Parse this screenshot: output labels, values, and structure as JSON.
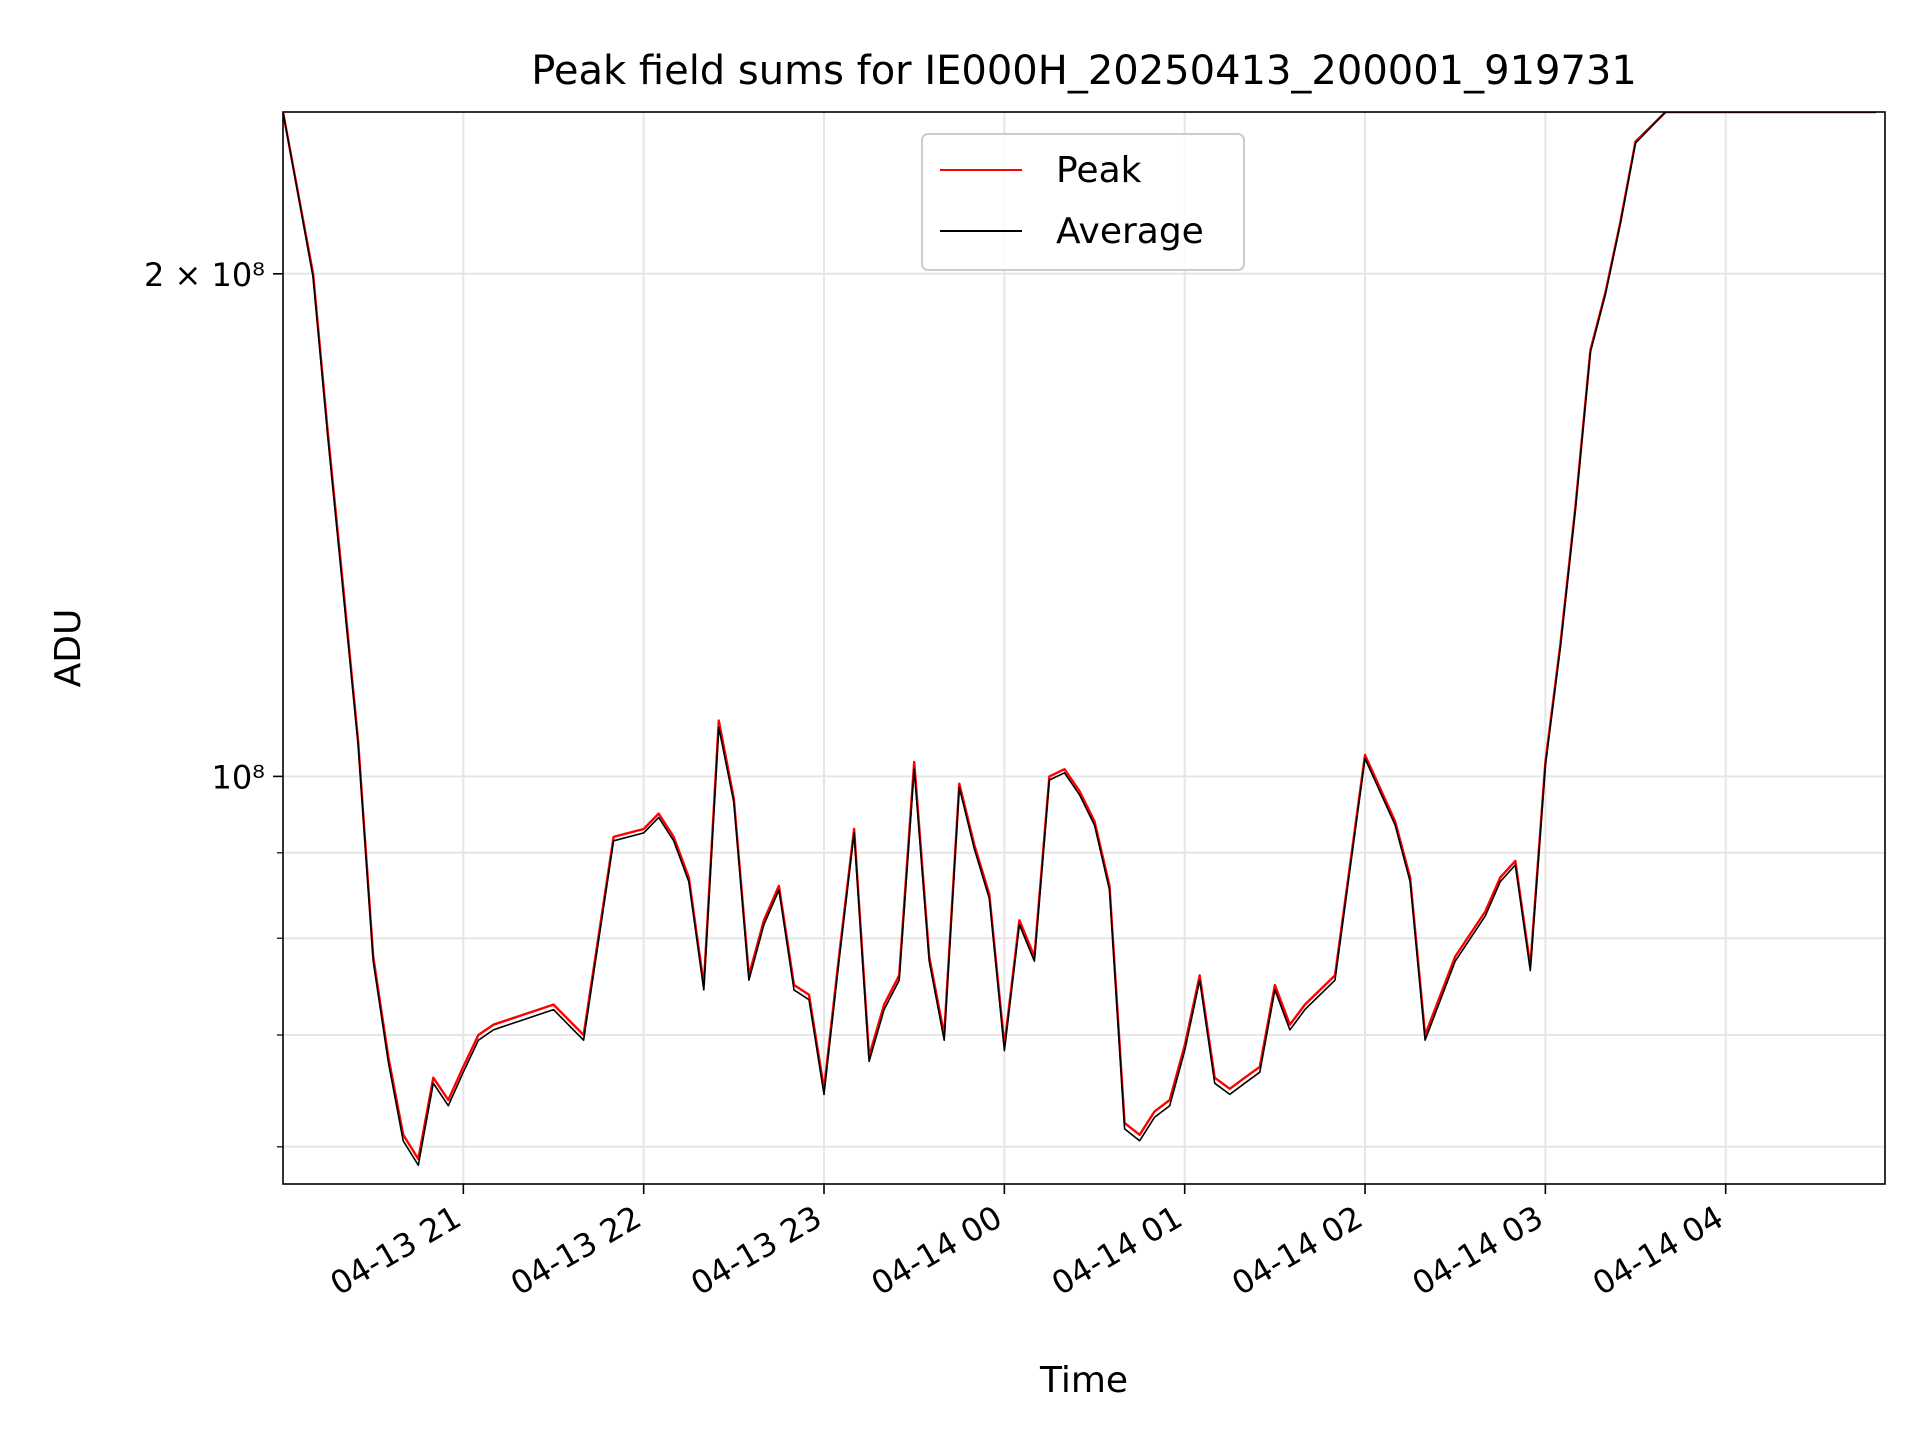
{
  "chart_data": {
    "type": "line",
    "title": "Peak field sums for IE000H_20250413_200001_919731",
    "xlabel": "Time",
    "ylabel": "ADU",
    "y_scale": "log",
    "grid": true,
    "legend_position": "top-center",
    "xlim": [
      "2025-04-13 20:00",
      "2025-04-14 04:53"
    ],
    "ylim": [
      57000000,
      250000000
    ],
    "x_ticks": [
      {
        "label": "04-13 21",
        "value": "2025-04-13 21:00"
      },
      {
        "label": "04-13 22",
        "value": "2025-04-13 22:00"
      },
      {
        "label": "04-13 23",
        "value": "2025-04-13 23:00"
      },
      {
        "label": "04-14 00",
        "value": "2025-04-14 00:00"
      },
      {
        "label": "04-14 01",
        "value": "2025-04-14 01:00"
      },
      {
        "label": "04-14 02",
        "value": "2025-04-14 02:00"
      },
      {
        "label": "04-14 03",
        "value": "2025-04-14 03:00"
      },
      {
        "label": "04-14 04",
        "value": "2025-04-14 04:00"
      }
    ],
    "y_ticks": [
      {
        "value": 200000000,
        "label": "2 × 10⁸"
      },
      {
        "value": 100000000,
        "label": "10⁸"
      }
    ],
    "y_minor_ticks": [
      60000000,
      70000000,
      80000000,
      90000000
    ],
    "x": [
      "2025-04-13 20:00",
      "2025-04-13 20:10",
      "2025-04-13 20:15",
      "2025-04-13 20:20",
      "2025-04-13 20:25",
      "2025-04-13 20:30",
      "2025-04-13 20:35",
      "2025-04-13 20:40",
      "2025-04-13 20:45",
      "2025-04-13 20:50",
      "2025-04-13 20:55",
      "2025-04-13 21:00",
      "2025-04-13 21:05",
      "2025-04-13 21:10",
      "2025-04-13 21:15",
      "2025-04-13 21:20",
      "2025-04-13 21:30",
      "2025-04-13 21:40",
      "2025-04-13 21:50",
      "2025-04-13 22:00",
      "2025-04-13 22:05",
      "2025-04-13 22:10",
      "2025-04-13 22:15",
      "2025-04-13 22:20",
      "2025-04-13 22:25",
      "2025-04-13 22:30",
      "2025-04-13 22:35",
      "2025-04-13 22:40",
      "2025-04-13 22:45",
      "2025-04-13 22:50",
      "2025-04-13 22:55",
      "2025-04-13 23:00",
      "2025-04-13 23:05",
      "2025-04-13 23:10",
      "2025-04-13 23:15",
      "2025-04-13 23:20",
      "2025-04-13 23:25",
      "2025-04-13 23:30",
      "2025-04-13 23:35",
      "2025-04-13 23:40",
      "2025-04-13 23:45",
      "2025-04-13 23:50",
      "2025-04-13 23:55",
      "2025-04-14 00:00",
      "2025-04-14 00:05",
      "2025-04-14 00:10",
      "2025-04-14 00:15",
      "2025-04-14 00:20",
      "2025-04-14 00:25",
      "2025-04-14 00:30",
      "2025-04-14 00:35",
      "2025-04-14 00:40",
      "2025-04-14 00:45",
      "2025-04-14 00:50",
      "2025-04-14 00:55",
      "2025-04-14 01:00",
      "2025-04-14 01:05",
      "2025-04-14 01:10",
      "2025-04-14 01:15",
      "2025-04-14 01:20",
      "2025-04-14 01:25",
      "2025-04-14 01:30",
      "2025-04-14 01:35",
      "2025-04-14 01:40",
      "2025-04-14 01:50",
      "2025-04-14 02:00",
      "2025-04-14 02:10",
      "2025-04-14 02:15",
      "2025-04-14 02:20",
      "2025-04-14 02:30",
      "2025-04-14 02:40",
      "2025-04-14 02:45",
      "2025-04-14 02:50",
      "2025-04-14 02:55",
      "2025-04-14 03:00",
      "2025-04-14 03:05",
      "2025-04-14 03:10",
      "2025-04-14 03:15",
      "2025-04-14 03:20",
      "2025-04-14 03:25",
      "2025-04-14 03:30",
      "2025-04-14 03:40",
      "2025-04-14 03:50",
      "2025-04-14 03:55",
      "2025-04-14 04:00",
      "2025-04-14 04:05",
      "2025-04-14 04:10",
      "2025-04-14 04:15",
      "2025-04-14 04:20",
      "2025-04-14 04:25",
      "2025-04-14 04:30",
      "2025-04-14 04:35",
      "2025-04-14 04:40",
      "2025-04-14 04:45",
      "2025-04-14 04:50"
    ],
    "series": [
      {
        "name": "Peak",
        "color": "#ff0000",
        "values": [
          250000000,
          200000000,
          160000000,
          130000000,
          105000000,
          78000000,
          68000000,
          61000000,
          59000000,
          66000000,
          64000000,
          67000000,
          70000000,
          71000000,
          71500000,
          72000000,
          73000000,
          70000000,
          92000000,
          93000000,
          95000000,
          92000000,
          87000000,
          75000000,
          108000000,
          97000000,
          76000000,
          82000000,
          86000000,
          75000000,
          74000000,
          65000000,
          78000000,
          93000000,
          68000000,
          73000000,
          76000000,
          102000000,
          78000000,
          70000000,
          99000000,
          91000000,
          85000000,
          69000000,
          82000000,
          78000000,
          100000000,
          101000000,
          98000000,
          94000000,
          86000000,
          62000000,
          61000000,
          63000000,
          64000000,
          69000000,
          76000000,
          66000000,
          65000000,
          66000000,
          67000000,
          75000000,
          71000000,
          73000000,
          76000000,
          103000000,
          94000000,
          87000000,
          70000000,
          78000000,
          83000000,
          87000000,
          89000000,
          77000000,
          102000000,
          120000000,
          145000000,
          180000000,
          195000000,
          215000000,
          240000000,
          250000000,
          250000000,
          250000000,
          250000000,
          250000000,
          250000000,
          250000000,
          250000000,
          250000000,
          250000000,
          250000000,
          250000000,
          250000000,
          250000000
        ]
      },
      {
        "name": "Average",
        "color": "#000000",
        "values": [
          250000000,
          199000000,
          159000000,
          129000000,
          104500000,
          77500000,
          67500000,
          60500000,
          58500000,
          65500000,
          63500000,
          66500000,
          69500000,
          70500000,
          71000000,
          71500000,
          72500000,
          69500000,
          91500000,
          92500000,
          94500000,
          91500000,
          86500000,
          74500000,
          107000000,
          96500000,
          75500000,
          81500000,
          85500000,
          74500000,
          73500000,
          64500000,
          77500000,
          92500000,
          67500000,
          72500000,
          75500000,
          101000000,
          77500000,
          69500000,
          98500000,
          90500000,
          84500000,
          68500000,
          81500000,
          77500000,
          99500000,
          100500000,
          97500000,
          93500000,
          85500000,
          61500000,
          60500000,
          62500000,
          63500000,
          68500000,
          75500000,
          65500000,
          64500000,
          65500000,
          66500000,
          74500000,
          70500000,
          72500000,
          75500000,
          102500000,
          93500000,
          86500000,
          69500000,
          77500000,
          82500000,
          86500000,
          88500000,
          76500000,
          101500000,
          119500000,
          144500000,
          179500000,
          194500000,
          214500000,
          239500000,
          250000000,
          250000000,
          250000000,
          250000000,
          250000000,
          250000000,
          250000000,
          250000000,
          250000000,
          250000000,
          250000000,
          250000000,
          250000000,
          250000000
        ]
      }
    ]
  }
}
